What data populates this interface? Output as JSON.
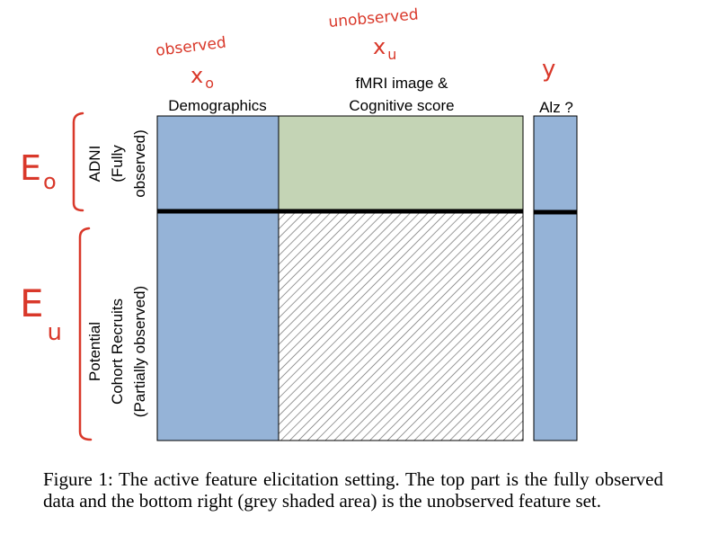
{
  "annotations": {
    "observed": "observed",
    "unobserved": "unobserved",
    "x_o": "x",
    "x_o_sub": "o",
    "x_u": "x",
    "x_u_sub": "u",
    "y": "y",
    "e_o": "E",
    "e_o_sub": "o",
    "e_u": "E",
    "e_u_sub": "u"
  },
  "column_headers": {
    "demographics": "Demographics",
    "fmri_line1": "fMRI image &",
    "fmri_line2": "Cognitive score",
    "alz": "Alz ?"
  },
  "row_labels": {
    "adni_line1": "ADNI",
    "adni_line2": "(Fully",
    "adni_line3": "observed)",
    "potential_line1": "Potential",
    "potential_line2": "Cohort Recruits",
    "potential_line3": "(Partially observed)"
  },
  "caption": "Figure 1: The active feature elicitation setting. The top part is the fully observed data and the bottom right (grey shaded area) is the unobserved feature set.",
  "colors": {
    "blue_fill": "#95b3d7",
    "green_fill": "#c4d4b5",
    "annotation_red": "#d9382a",
    "hatch_grey": "#6e6e6e"
  }
}
